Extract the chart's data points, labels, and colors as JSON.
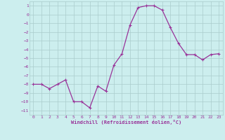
{
  "x": [
    0,
    1,
    2,
    3,
    4,
    5,
    6,
    7,
    8,
    9,
    10,
    11,
    12,
    13,
    14,
    15,
    16,
    17,
    18,
    19,
    20,
    21,
    22,
    23
  ],
  "y": [
    -8,
    -8,
    -8.5,
    -8,
    -7.5,
    -10,
    -10,
    -10.7,
    -8.2,
    -8.8,
    -5.8,
    -4.5,
    -1.2,
    0.8,
    1.0,
    1.0,
    0.5,
    -1.5,
    -3.3,
    -4.6,
    -4.6,
    -5.2,
    -4.6,
    -4.5
  ],
  "line_color": "#993399",
  "marker": "+",
  "marker_color": "#993399",
  "bg_color": "#cceeee",
  "grid_color": "#aacccc",
  "xlabel": "Windchill (Refroidissement éolien,°C)",
  "xlabel_color": "#993399",
  "tick_color": "#993399",
  "ylim": [
    -11.5,
    1.5
  ],
  "yticks": [
    1,
    0,
    -1,
    -2,
    -3,
    -4,
    -5,
    -6,
    -7,
    -8,
    -9,
    -10,
    -11
  ],
  "xticks": [
    0,
    1,
    2,
    3,
    4,
    5,
    6,
    7,
    8,
    9,
    10,
    11,
    12,
    13,
    14,
    15,
    16,
    17,
    18,
    19,
    20,
    21,
    22,
    23
  ],
  "xlim": [
    -0.5,
    23.5
  ]
}
